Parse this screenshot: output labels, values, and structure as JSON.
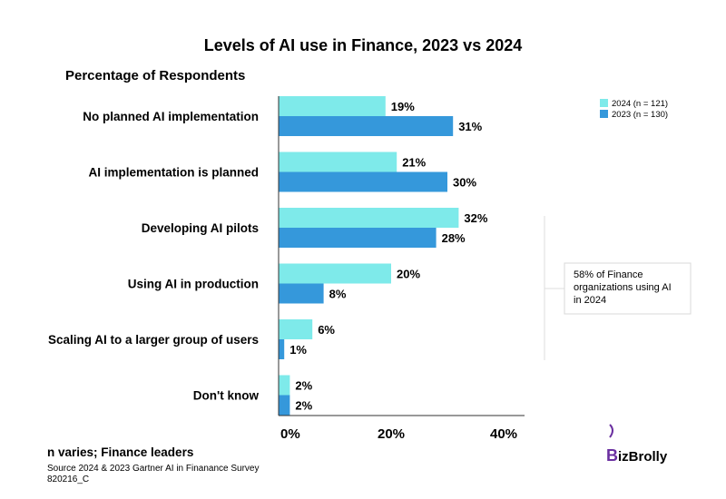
{
  "chart_data": {
    "type": "bar",
    "orientation": "horizontal",
    "title": "Levels of AI use in Finance, 2023 vs 2024",
    "subtitle": "Percentage of Respondents",
    "categories": [
      "No planned AI implementation",
      "AI implementation is planned",
      "Developing AI pilots",
      "Using AI in production",
      "Scaling AI to a larger group of users",
      "Don't know"
    ],
    "series": [
      {
        "name": "2024 (n = 121)",
        "color": "#7eeaea",
        "values": [
          19,
          21,
          32,
          20,
          6,
          2
        ]
      },
      {
        "name": "2023 (n = 130)",
        "color": "#3598db",
        "values": [
          31,
          30,
          28,
          8,
          1,
          2
        ]
      }
    ],
    "value_suffix": "%",
    "xlim": [
      0,
      40
    ],
    "xticks": [
      0,
      20,
      40
    ],
    "xtick_labels": [
      "0%",
      "20%",
      "40%"
    ],
    "grid": false,
    "legend_position": "top-right",
    "annotation": "58% of Finance organizations using AI in 2024"
  },
  "footer": {
    "note": "n varies; Finance leaders",
    "source": "Source 2024 & 2023 Gartner AI in Finanance Survey",
    "code": "820216_C"
  },
  "logo": {
    "first": "B",
    "rest": "izBrolly",
    "color": "#22b573"
  }
}
